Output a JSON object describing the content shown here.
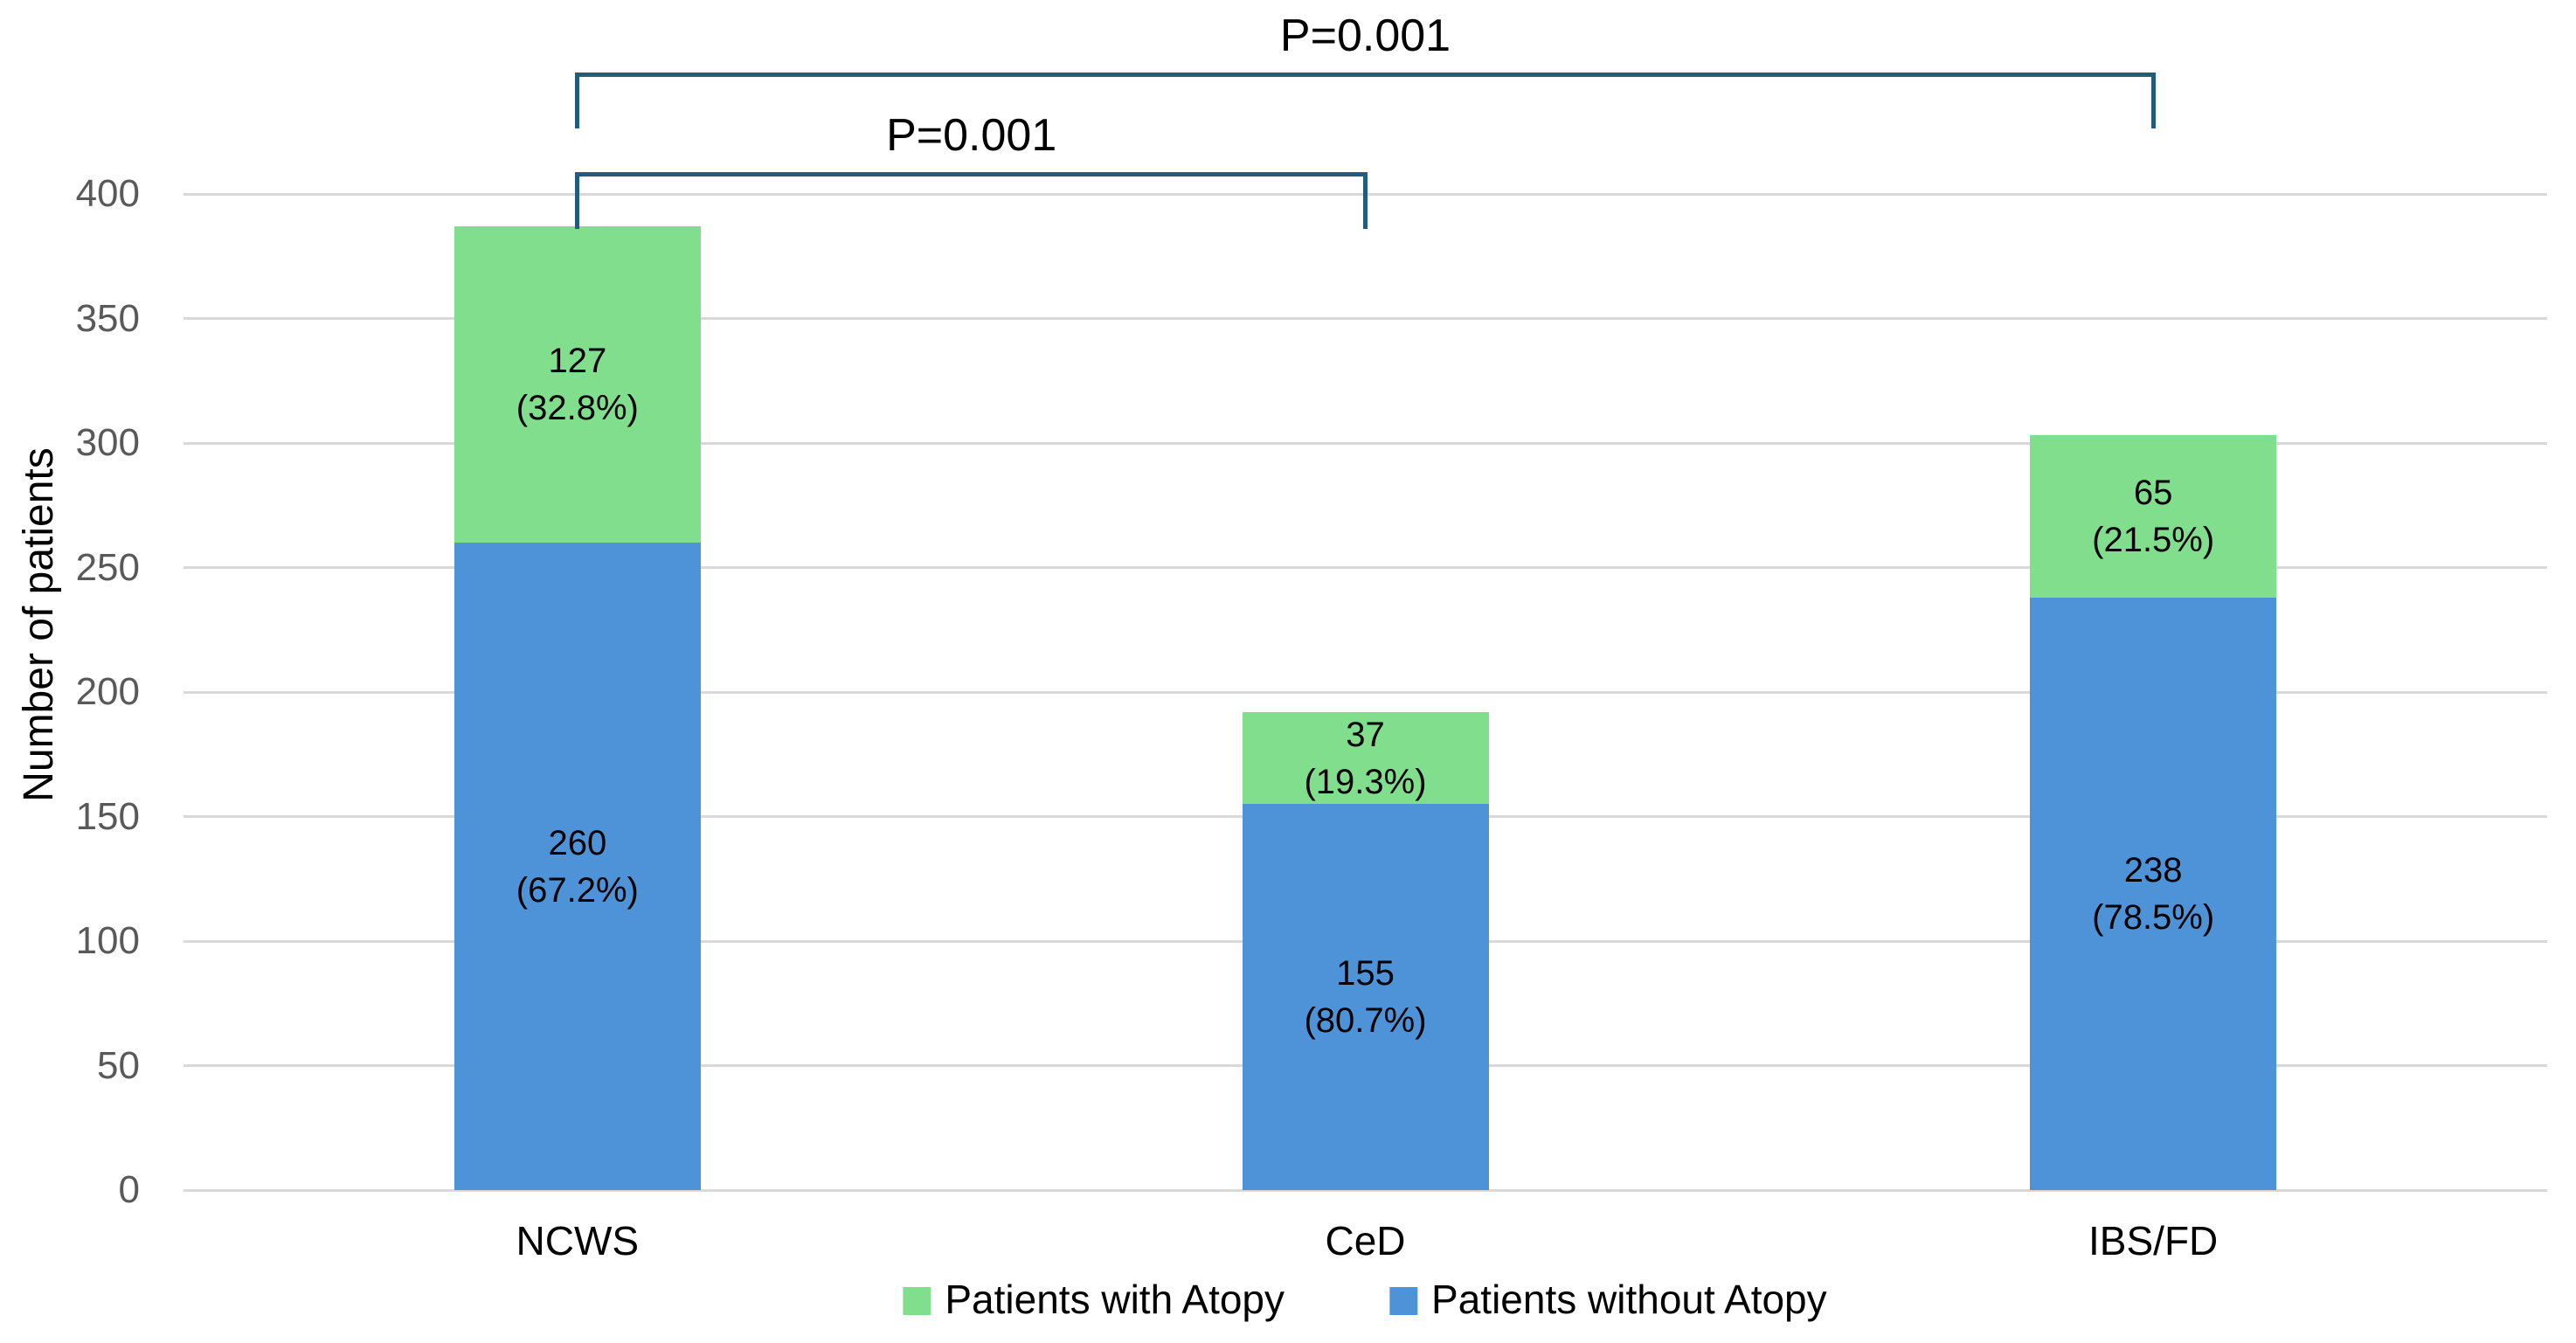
{
  "chart_data": {
    "type": "bar",
    "stacked": true,
    "title": "",
    "xlabel": "",
    "ylabel": "Number of patients",
    "ylim": [
      0,
      400
    ],
    "yticks": [
      0,
      50,
      100,
      150,
      200,
      250,
      300,
      350,
      400
    ],
    "grid": true,
    "legend_position": "bottom",
    "categories": [
      "NCWS",
      "CeD",
      "IBS/FD"
    ],
    "series": [
      {
        "name": "Patients with Atopy",
        "color": "#80de8c",
        "stack_position": "top",
        "values": [
          127,
          37,
          65
        ],
        "percent_labels": [
          "32.8%",
          "19.3%",
          "21.5%"
        ]
      },
      {
        "name": "Patients without Atopy",
        "color": "#4e93d8",
        "stack_position": "bottom",
        "values": [
          260,
          155,
          238
        ],
        "percent_labels": [
          "67.2%",
          "80.7%",
          "78.5%"
        ]
      }
    ],
    "annotations": [
      {
        "label": "P=0.001",
        "from": "NCWS",
        "to": "CeD"
      },
      {
        "label": "P=0.001",
        "from": "NCWS",
        "to": "IBS/FD"
      }
    ]
  },
  "styles": {
    "background": "#ffffff",
    "gridline_color": "#d9d9d9",
    "tick_label_color": "#595959",
    "bracket_color": "#215c7c",
    "text_color": "#000000"
  }
}
